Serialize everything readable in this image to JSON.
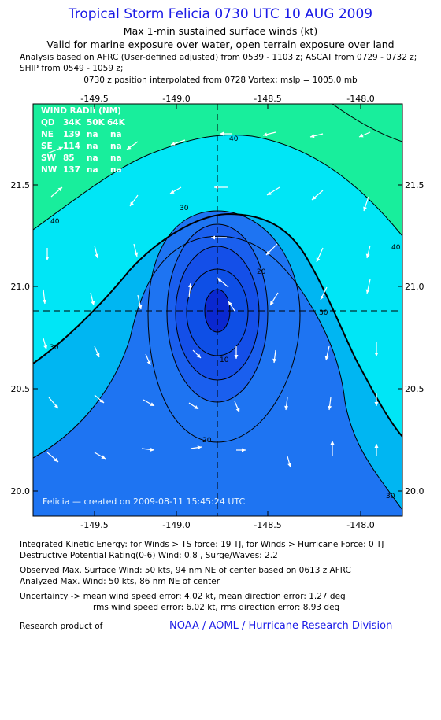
{
  "header": {
    "title": "Tropical Storm Felicia 0730 UTC 10 AUG 2009",
    "subtitle": "Max 1-min sustained surface winds (kt)",
    "valid": "Valid for marine exposure over water, open terrain exposure over land",
    "analysis1": "Analysis based on  AFRC (User-defined adjusted) from 0539 - 1103 z;  ASCAT from 0729 - 0732 z;",
    "analysis2": "SHIP from 0549 - 1059 z;",
    "analysis3": "0730 z position interpolated from 0728 Vortex; mslp = 1005.0 mb"
  },
  "map": {
    "lon_ticks": [
      "-149.5",
      "-149.0",
      "-148.5",
      "-148.0"
    ],
    "lat_ticks": [
      "21.5",
      "21.0",
      "20.5",
      "20.0"
    ],
    "lon_range": [
      -149.75,
      -148.25
    ],
    "lat_range": [
      19.9,
      21.95
    ],
    "center": {
      "lon": -149.0,
      "lat": 20.88
    },
    "contour_labels": [
      "40",
      "30",
      "20",
      "10",
      "20",
      "30",
      "30",
      "40",
      "30",
      "40",
      "30"
    ],
    "watermark": "Felicia — created on 2009-08-11 15:45:24 UTC",
    "colors": {
      "band_lt20": "#1e74f2",
      "band_20_30": "#00b6f2",
      "band_30_40": "#00e6f6",
      "band_40_50": "#18ee9c",
      "band_50_60": "#0e4fe6",
      "band_core": "#0a28d0"
    }
  },
  "wind_radii": {
    "header": "WIND RADII (NM)",
    "columns": [
      "QD",
      "34K",
      "50K",
      "64K"
    ],
    "rows": [
      [
        "NE",
        "139",
        "na",
        "na"
      ],
      [
        "SE",
        "114",
        "na",
        "na"
      ],
      [
        "SW",
        "85",
        "na",
        "na"
      ],
      [
        "NW",
        "137",
        "na",
        "na"
      ]
    ]
  },
  "footer": {
    "ike": "Integrated Kinetic Energy:  for Winds > TS force: 19 TJ,  for Winds > Hurricane Force: 0 TJ",
    "dpr": "Destructive Potential Rating(0-6)   Wind: 0.8 , Surge/Waves: 2.2",
    "obs_max": "Observed Max. Surface Wind: 50 kts, 94 nm NE of center based on 0613 z AFRC",
    "ana_max": "Analyzed Max. Wind: 50 kts, 86 nm NE of center",
    "unc1": "Uncertainty -> mean wind speed error: 4.02 kt,   mean direction error: 1.27 deg",
    "unc2": "rms wind speed error: 6.02 kt,   rms direction error: 8.93 deg",
    "research": "Research product of",
    "noaa": "NOAA / AOML / Hurricane Research Division"
  }
}
